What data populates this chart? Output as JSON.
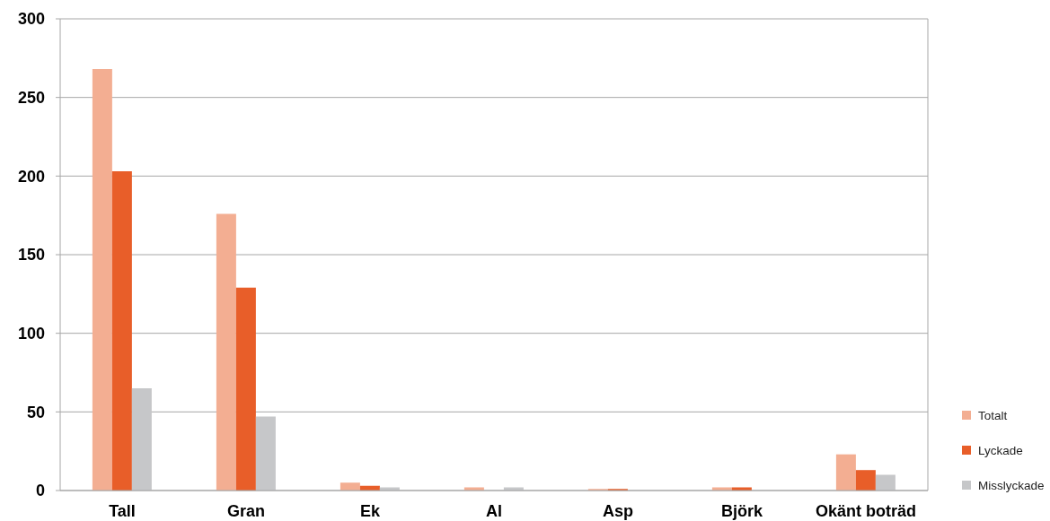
{
  "chart_data": {
    "type": "bar",
    "categories": [
      "Tall",
      "Gran",
      "Ek",
      "Al",
      "Asp",
      "Björk",
      "Okänt boträd"
    ],
    "series": [
      {
        "name": "Totalt",
        "color": "#f3ae92",
        "values": [
          268,
          176,
          5,
          2,
          1,
          2,
          23
        ]
      },
      {
        "name": "Lyckade",
        "color": "#e85e29",
        "values": [
          203,
          129,
          3,
          0,
          1,
          2,
          13
        ]
      },
      {
        "name": "Misslyckade",
        "color": "#c6c7c9",
        "values": [
          65,
          47,
          2,
          2,
          0,
          0,
          10
        ]
      }
    ],
    "ylim": [
      0,
      300
    ],
    "yticks": [
      0,
      50,
      100,
      150,
      200,
      250,
      300
    ],
    "grid": "y",
    "legend": "bottom right"
  }
}
